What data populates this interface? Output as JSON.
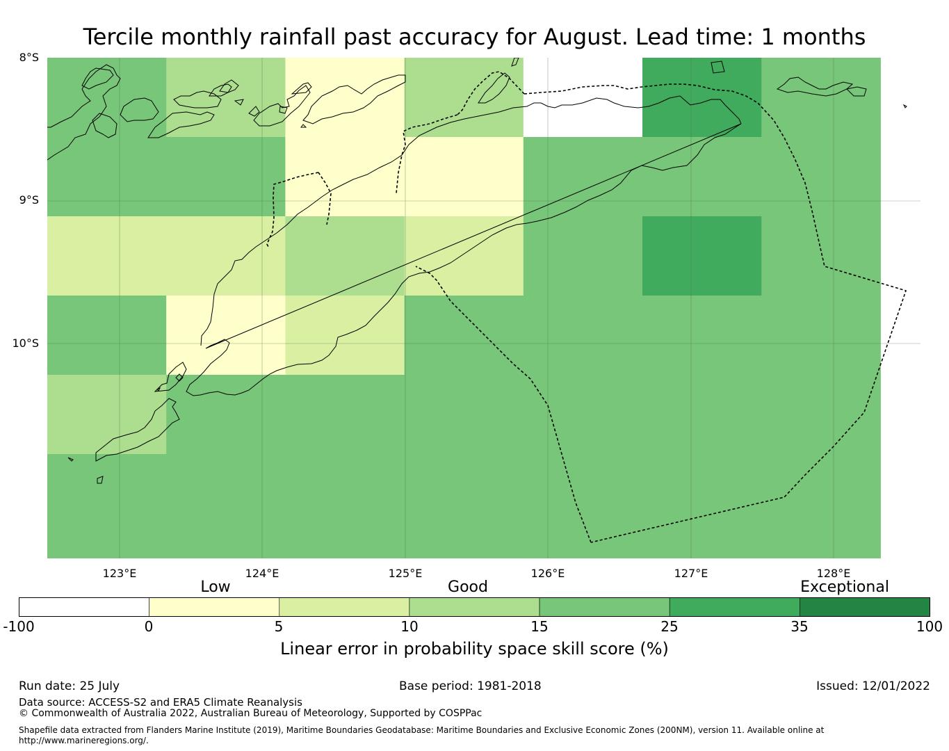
{
  "title": "Tercile monthly rainfall past accuracy for August. Lead time: 1 months",
  "map": {
    "lat_ticks": [
      "8°S",
      "9°S",
      "10°S"
    ],
    "lon_ticks": [
      "123°E",
      "124°E",
      "125°E",
      "126°E",
      "127°E",
      "128°E"
    ],
    "lon_range": [
      122.5,
      128.6
    ],
    "lat_range": [
      -8.0,
      -11.5
    ],
    "grid_cell_deg": 0.833,
    "cell_values_class_index": [
      [
        4,
        3,
        1,
        3,
        0,
        5,
        4
      ],
      [
        4,
        4,
        1,
        1,
        4,
        4,
        4
      ],
      [
        2,
        2,
        3,
        2,
        4,
        5,
        4
      ],
      [
        4,
        1,
        2,
        4,
        4,
        4,
        4
      ],
      [
        3,
        4,
        4,
        4,
        4,
        4,
        4
      ],
      [
        4,
        4,
        4,
        4,
        4,
        4,
        4
      ],
      [
        4,
        4,
        4,
        4,
        4,
        4,
        4
      ]
    ],
    "features": [
      "coastline",
      "maritime-boundary-dashed",
      "graticule"
    ]
  },
  "colorbar": {
    "category_labels": [
      "Low",
      "Good",
      "Exceptional"
    ],
    "tick_labels": [
      "-100",
      "0",
      "5",
      "10",
      "15",
      "25",
      "35",
      "100"
    ],
    "colors": [
      "#ffffff",
      "#ffffcc",
      "#d9f0a3",
      "#addd8e",
      "#78c679",
      "#41ab5d",
      "#238443"
    ],
    "label": "Linear error in probability space skill score (%)"
  },
  "footer": {
    "run_date": "Run date: 25 July",
    "base_period": "Base period: 1981-2018",
    "issued": "Issued: 12/01/2022",
    "data_source": "Data source: ACCESS-S2 and ERA5 Climate Reanalysis",
    "copyright": "© Commonwealth of Australia 2022, Australian Bureau of Meteorology, Supported by COSPPac",
    "shapefile_line1": "Shapefile data extracted from Flanders Marine Institute (2019), Maritime Boundaries Geodatabase: Maritime Boundaries and Exclusive Economic Zones (200NM), version 11. Available online at",
    "shapefile_line2": "http://www.marineregions.org/."
  }
}
